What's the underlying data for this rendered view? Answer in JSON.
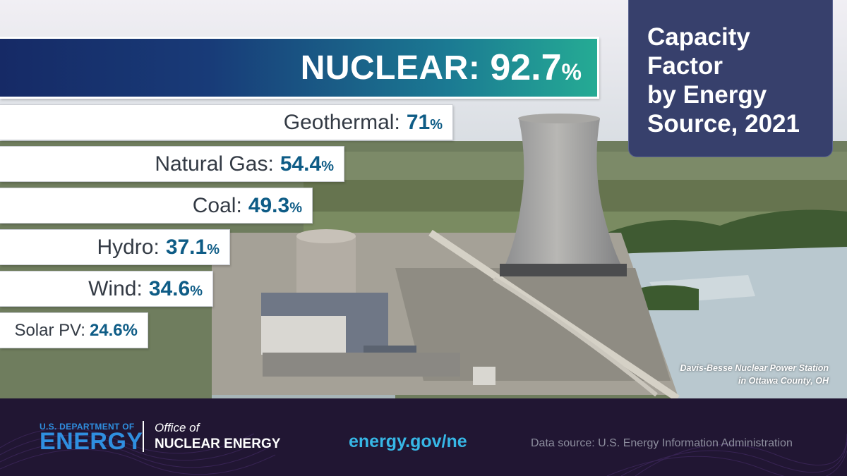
{
  "chart_data": {
    "type": "bar",
    "title": "Capacity Factor by Energy Source, 2021",
    "categories": [
      "NUCLEAR",
      "Geothermal",
      "Natural Gas",
      "Coal",
      "Hydro",
      "Wind",
      "Solar PV"
    ],
    "values": [
      92.7,
      71,
      54.4,
      49.3,
      37.1,
      34.6,
      24.6
    ],
    "unit": "%",
    "orientation": "horizontal"
  },
  "title_lines": [
    "Capacity",
    "Factor",
    "by Energy",
    "Source, 2021"
  ],
  "bars": [
    {
      "label": "NUCLEAR",
      "sep": ":",
      "value": "92.7",
      "unit": "%"
    },
    {
      "label": "Geothermal",
      "sep": ":",
      "value": "71",
      "unit": "%"
    },
    {
      "label": "Natural Gas",
      "sep": ":",
      "value": "54.4",
      "unit": "%"
    },
    {
      "label": "Coal",
      "sep": ":",
      "value": "49.3",
      "unit": "%"
    },
    {
      "label": "Hydro",
      "sep": ":",
      "value": "37.1",
      "unit": "%"
    },
    {
      "label": "Wind",
      "sep": ":",
      "value": "34.6",
      "unit": "%"
    },
    {
      "label": "Solar PV",
      "sep": ":",
      "value": "24.6",
      "unit": "%"
    }
  ],
  "caption": {
    "line1": "Davis-Besse Nuclear Power Station",
    "line2": "in Ottawa County, OH"
  },
  "footer": {
    "doe_small": "U.S. DEPARTMENT OF",
    "doe_big": "ENERGY",
    "office_of": "Office of",
    "office_name": "NUCLEAR ENERGY",
    "url": "energy.gov/ne",
    "source": "Data source: U.S. Energy Information Administration"
  },
  "colors": {
    "nuclear_gradient": [
      "#162a66",
      "#25ab94"
    ],
    "value_text": "#0e5c86",
    "title_box": "#37406c",
    "footer_bg": "#211633",
    "doe_blue": "#2f8fe0",
    "url": "#37b7e6"
  }
}
